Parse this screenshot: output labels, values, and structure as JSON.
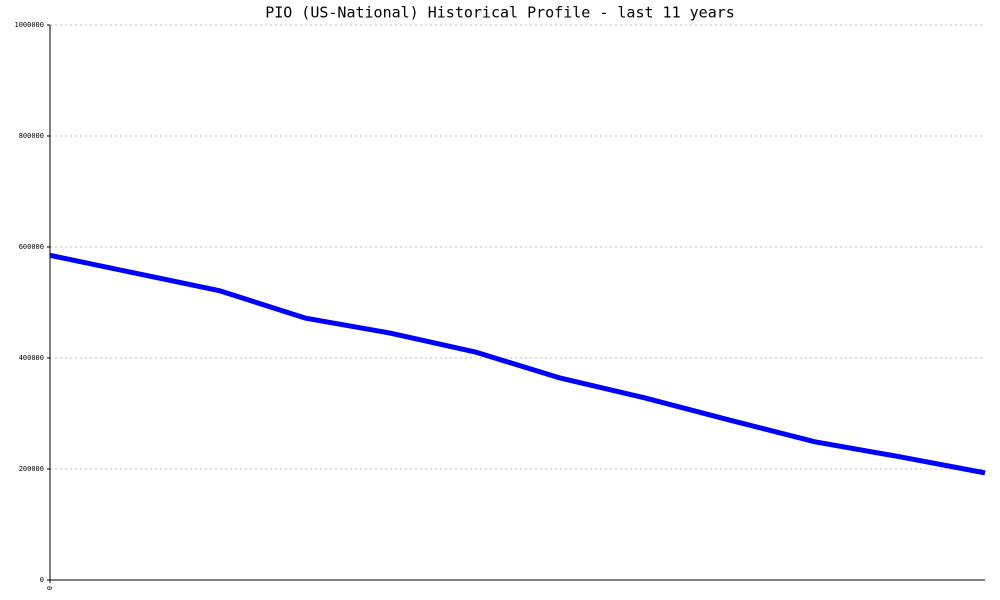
{
  "chart_data": {
    "type": "line",
    "title": "PIO (US-National) Historical Profile - last 11 years",
    "x": [
      0,
      1,
      2,
      3,
      4,
      5,
      6,
      7,
      8,
      9,
      10,
      11
    ],
    "series": [
      {
        "color": "#0000ff",
        "values": [
          585000,
          553000,
          521000,
          472000,
          445000,
          411000,
          364000,
          328000,
          288000,
          249000,
          222000,
          193000
        ]
      }
    ],
    "xlim": [
      0,
      11
    ],
    "xticks": [
      0
    ],
    "ylim": [
      0,
      1000000
    ],
    "yticks": [
      0,
      200000,
      400000,
      600000,
      800000,
      1000000
    ],
    "grid": true
  }
}
